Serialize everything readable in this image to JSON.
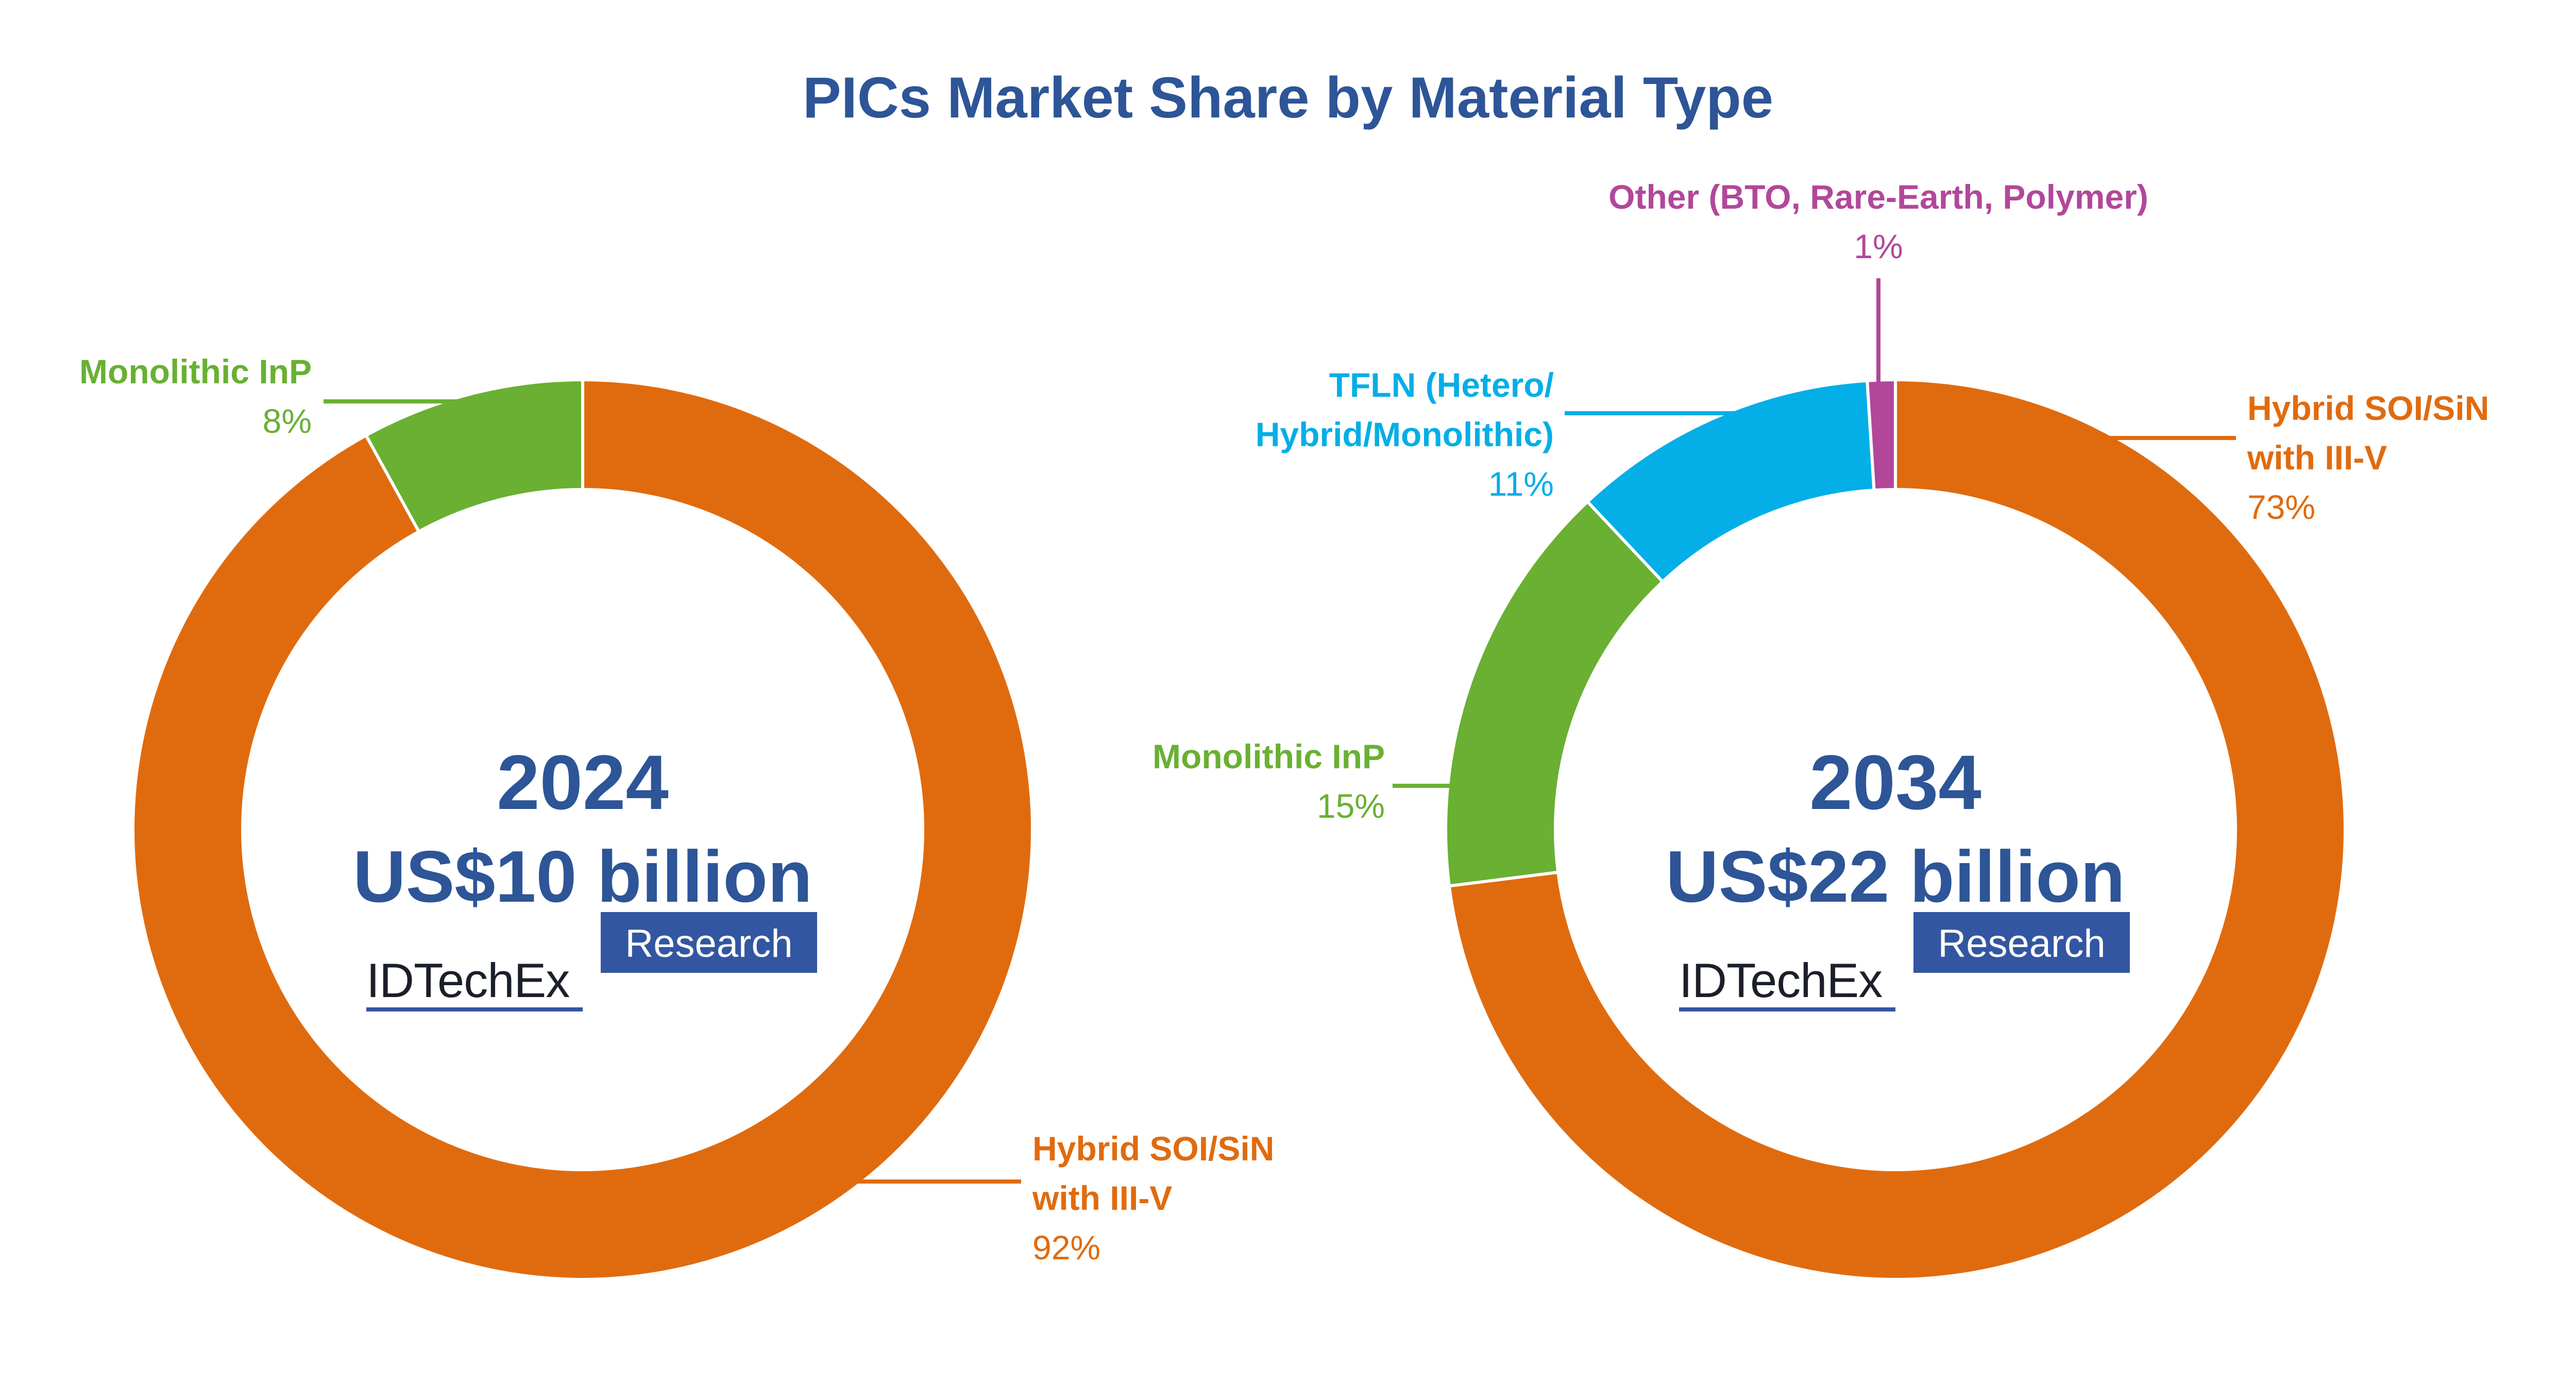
{
  "title": "PICs Market Share by Material Type",
  "colors": {
    "title": "#2d5597",
    "hybrid": "#e06b0f",
    "inp": "#69b033",
    "tfln": "#04aee6",
    "other": "#b2479a",
    "brand": "#3356a2",
    "dark": "#1b1f2a"
  },
  "logo": {
    "word": "IDTechEx",
    "badge": "Research"
  },
  "chart_data": [
    {
      "type": "pie",
      "variant": "donut",
      "center": {
        "year": "2024",
        "amount": "US$10 billion"
      },
      "slices": [
        {
          "name_lines": [
            "Hybrid SOI/SiN",
            "with III-V"
          ],
          "value": 92,
          "value_label": "92%",
          "color": "#e06b0f"
        },
        {
          "name_lines": [
            "Monolithic InP"
          ],
          "value": 8,
          "value_label": "8%",
          "color": "#69b033"
        }
      ]
    },
    {
      "type": "pie",
      "variant": "donut",
      "center": {
        "year": "2034",
        "amount": "US$22 billion"
      },
      "slices": [
        {
          "name_lines": [
            "Hybrid SOI/SiN",
            "with III-V"
          ],
          "value": 73,
          "value_label": "73%",
          "color": "#e06b0f"
        },
        {
          "name_lines": [
            "Monolithic InP"
          ],
          "value": 15,
          "value_label": "15%",
          "color": "#69b033"
        },
        {
          "name_lines": [
            "TFLN (Hetero/",
            "Hybrid/Monolithic)"
          ],
          "value": 11,
          "value_label": "11%",
          "color": "#04aee6"
        },
        {
          "name_lines": [
            "Other (BTO, Rare-Earth, Polymer)"
          ],
          "value": 1,
          "value_label": "1%",
          "color": "#b2479a"
        }
      ]
    }
  ]
}
